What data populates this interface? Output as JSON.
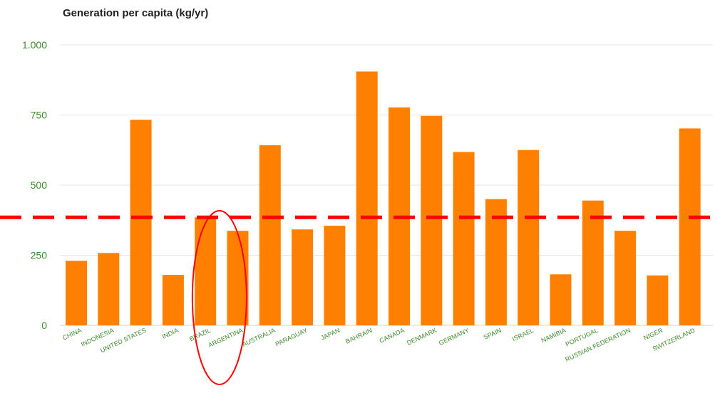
{
  "chart_data": {
    "type": "bar",
    "title": "Generation per capita  (kg/yr)",
    "xlabel": "",
    "ylabel": "",
    "ylim": [
      0,
      1000
    ],
    "yticks": [
      0,
      250,
      500,
      750,
      1000
    ],
    "ytick_labels": [
      "0",
      "250",
      "500",
      "750",
      "1.000"
    ],
    "grid": true,
    "categories": [
      "CHINA",
      "INDONESIA",
      "UNITED STATES",
      "INDIA",
      "BRAZIL",
      "ARGENTINA",
      "AUSTRALIA",
      "PARAGUAY",
      "JAPAN",
      "BAHRAIN",
      "CANADA",
      "DENMARK",
      "GERMANY",
      "SPAIN",
      "ISRAEL",
      "NAMIBIA",
      "PORTUGAL",
      "RUSSIAN FEDERATION",
      "NIGER",
      "SWITZERLAND"
    ],
    "values": [
      230,
      258,
      733,
      180,
      385,
      337,
      642,
      342,
      355,
      905,
      777,
      747,
      618,
      450,
      625,
      182,
      445,
      337,
      178,
      702
    ],
    "bar_color": "#ff8000",
    "tick_label_color": "#3c8c2c",
    "annotations": {
      "reference_line_value": 385,
      "reference_line_color": "#ff0000",
      "highlighted_category": "BRAZIL",
      "highlight_color": "#ff0000"
    }
  }
}
